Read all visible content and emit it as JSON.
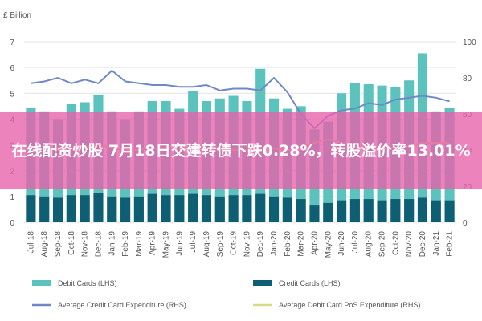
{
  "chart_data": {
    "type": "bar",
    "y_left_unit": "£ Billion",
    "y_left_ticks": [
      "7",
      "6",
      "5",
      "4",
      "3",
      "2",
      "1",
      "0"
    ],
    "y_right_ticks": [
      "100",
      "80",
      "60",
      "40",
      "20",
      "0"
    ],
    "ylim_left": [
      0,
      7
    ],
    "ylim_right": [
      0,
      100
    ],
    "categories": [
      "Jul-18",
      "Aug-18",
      "Sep-18",
      "Oct-18",
      "Nov-18",
      "Dec-18",
      "Jan-19",
      "Feb-19",
      "Mar-19",
      "Apr-19",
      "May-19",
      "Jun-19",
      "Jul-19",
      "Aug-19",
      "Sep-19",
      "Oct-19",
      "Nov-19",
      "Dec-19",
      "Jan-20",
      "Feb-20",
      "Mar-20",
      "Apr-20",
      "May-20",
      "Jun-20",
      "Jul-20",
      "Aug-20",
      "Sep-20",
      "Oct-20",
      "Nov-20",
      "Dec-20",
      "Jan-21",
      "Feb-21"
    ],
    "series": [
      {
        "name": "Debit Cards (LHS)",
        "type": "bar",
        "axis": "left",
        "color": "#5bc2bd",
        "values": [
          4.45,
          4.3,
          4.0,
          4.6,
          4.65,
          4.95,
          4.3,
          4.0,
          4.3,
          4.7,
          4.7,
          4.4,
          5.1,
          4.7,
          4.8,
          4.9,
          4.7,
          5.95,
          4.8,
          4.4,
          4.5,
          3.6,
          3.9,
          5.0,
          5.4,
          5.35,
          5.3,
          5.25,
          5.5,
          6.55,
          4.3,
          4.45
        ]
      },
      {
        "name": "Credit Cards (LHS)",
        "type": "bar",
        "axis": "left",
        "color": "#0e5f73",
        "values": [
          1.05,
          1.0,
          0.95,
          1.05,
          1.05,
          1.15,
          1.0,
          0.95,
          1.0,
          1.1,
          1.05,
          1.05,
          1.1,
          1.05,
          1.0,
          1.05,
          1.05,
          1.1,
          1.0,
          0.95,
          0.9,
          0.65,
          0.75,
          0.85,
          0.9,
          0.9,
          0.85,
          0.9,
          0.9,
          0.95,
          0.85,
          0.85
        ]
      },
      {
        "name": "Average Credit Card Expenditure (RHS)",
        "type": "line",
        "axis": "right",
        "color": "#6f89c6",
        "values": [
          77,
          78,
          80,
          77,
          79,
          77,
          84,
          78,
          77,
          76,
          76,
          75,
          75,
          76,
          73,
          74,
          74,
          73,
          80,
          72,
          60,
          52,
          59,
          62,
          63,
          66,
          65,
          68,
          69,
          70,
          69,
          67
        ]
      },
      {
        "name": "Average Debit Card PoS Expenditure (RHS)",
        "type": "line",
        "axis": "right",
        "color": "#d9d98a",
        "values": [
          40,
          41,
          40,
          41,
          41,
          43,
          41,
          40,
          40,
          41,
          41,
          41,
          41,
          41,
          40,
          40,
          40,
          41,
          41,
          40,
          40,
          44,
          46,
          44,
          42,
          41,
          41,
          41,
          42,
          44,
          44,
          44
        ]
      }
    ]
  },
  "banner": {
    "text": "在线配资炒股 7月18日交建转债下跌0.28%，转股溢价率13.01%"
  }
}
